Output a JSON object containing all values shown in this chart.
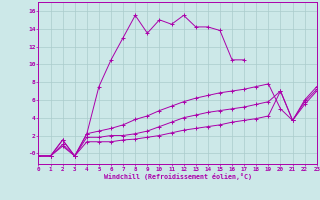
{
  "background_color": "#cce8e8",
  "grid_color": "#aacccc",
  "line_color": "#aa00aa",
  "xlabel": "Windchill (Refroidissement éolien,°C)",
  "xlim": [
    0,
    23
  ],
  "ylim": [
    -1.2,
    17
  ],
  "xticks": [
    0,
    1,
    2,
    3,
    4,
    5,
    6,
    7,
    8,
    9,
    10,
    11,
    12,
    13,
    14,
    15,
    16,
    17,
    18,
    19,
    20,
    21,
    22,
    23
  ],
  "yticks": [
    0,
    2,
    4,
    6,
    8,
    10,
    12,
    14,
    16
  ],
  "ytick_labels": [
    "-0",
    "2",
    "4",
    "6",
    "8",
    "10",
    "12",
    "14",
    "16"
  ],
  "series": [
    {
      "x": [
        0,
        1,
        2,
        3,
        4,
        5,
        6,
        7,
        8,
        9,
        10,
        11,
        12,
        13,
        14,
        15,
        16,
        17
      ],
      "y": [
        -0.3,
        -0.3,
        1.5,
        -0.3,
        2.2,
        7.5,
        10.5,
        13.0,
        15.5,
        13.5,
        15.0,
        14.5,
        15.5,
        14.2,
        14.2,
        13.8,
        10.5,
        10.5
      ]
    },
    {
      "x": [
        0,
        1,
        2,
        3,
        4,
        5,
        6,
        7,
        8,
        9,
        10,
        11,
        12,
        13,
        14,
        15,
        16,
        17,
        18,
        19,
        20,
        21,
        22,
        23
      ],
      "y": [
        -0.3,
        -0.3,
        1.5,
        -0.3,
        2.2,
        2.5,
        2.8,
        3.2,
        3.8,
        4.2,
        4.8,
        5.3,
        5.8,
        6.2,
        6.5,
        6.8,
        7.0,
        7.2,
        7.5,
        7.8,
        5.0,
        3.7,
        6.0,
        7.5
      ]
    },
    {
      "x": [
        0,
        1,
        2,
        3,
        4,
        5,
        6,
        7,
        8,
        9,
        10,
        11,
        12,
        13,
        14,
        15,
        16,
        17,
        18,
        19,
        20,
        21,
        22,
        23
      ],
      "y": [
        -0.3,
        -0.3,
        1.0,
        -0.3,
        1.8,
        1.8,
        2.0,
        2.0,
        2.2,
        2.5,
        3.0,
        3.5,
        4.0,
        4.3,
        4.6,
        4.8,
        5.0,
        5.2,
        5.5,
        5.8,
        7.0,
        3.7,
        5.8,
        7.2
      ]
    },
    {
      "x": [
        0,
        1,
        2,
        3,
        4,
        5,
        6,
        7,
        8,
        9,
        10,
        11,
        12,
        13,
        14,
        15,
        16,
        17,
        18,
        19,
        20,
        21,
        22,
        23
      ],
      "y": [
        -0.3,
        -0.3,
        0.8,
        -0.3,
        1.3,
        1.3,
        1.3,
        1.5,
        1.6,
        1.8,
        2.0,
        2.3,
        2.6,
        2.8,
        3.0,
        3.2,
        3.5,
        3.7,
        3.9,
        4.2,
        7.0,
        3.7,
        5.5,
        7.0
      ]
    }
  ]
}
